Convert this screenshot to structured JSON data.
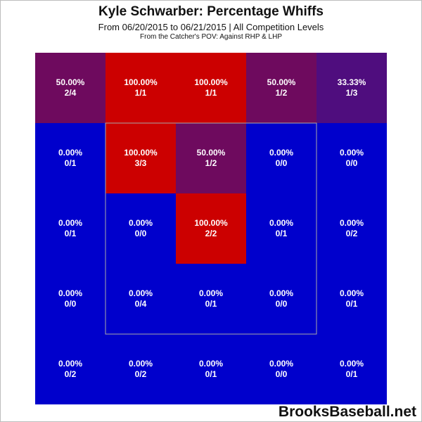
{
  "header": {
    "title": "Kyle Schwarber: Percentage Whiffs",
    "subtitle": "From 06/20/2015 to 06/21/2015 | All Competition Levels",
    "subtitle2": "From the Catcher's POV:  Against RHP & LHP"
  },
  "watermark": "BrooksBaseball.net",
  "colors": {
    "red": "#cc0000",
    "purple_dark": "#4f0d7e",
    "purple_mid": "#6e0a5e",
    "blue": "#0000cc",
    "strike_zone_outline": "#a8a8a8"
  },
  "chart_data": {
    "type": "heatmap",
    "title": "Kyle Schwarber: Percentage Whiffs",
    "metric": "Percentage Whiffs",
    "grid": {
      "rows": 5,
      "cols": 5
    },
    "strike_zone": {
      "rows": [
        1,
        3
      ],
      "cols": [
        1,
        3
      ]
    },
    "cells": [
      [
        {
          "pct": "50.00%",
          "count": "2/4",
          "value": 50.0
        },
        {
          "pct": "100.00%",
          "count": "1/1",
          "value": 100.0
        },
        {
          "pct": "100.00%",
          "count": "1/1",
          "value": 100.0
        },
        {
          "pct": "50.00%",
          "count": "1/2",
          "value": 50.0
        },
        {
          "pct": "33.33%",
          "count": "1/3",
          "value": 33.33
        }
      ],
      [
        {
          "pct": "0.00%",
          "count": "0/1",
          "value": 0.0
        },
        {
          "pct": "100.00%",
          "count": "3/3",
          "value": 100.0
        },
        {
          "pct": "50.00%",
          "count": "1/2",
          "value": 50.0
        },
        {
          "pct": "0.00%",
          "count": "0/0",
          "value": 0.0
        },
        {
          "pct": "0.00%",
          "count": "0/0",
          "value": 0.0
        }
      ],
      [
        {
          "pct": "0.00%",
          "count": "0/1",
          "value": 0.0
        },
        {
          "pct": "0.00%",
          "count": "0/0",
          "value": 0.0
        },
        {
          "pct": "100.00%",
          "count": "2/2",
          "value": 100.0
        },
        {
          "pct": "0.00%",
          "count": "0/1",
          "value": 0.0
        },
        {
          "pct": "0.00%",
          "count": "0/2",
          "value": 0.0
        }
      ],
      [
        {
          "pct": "0.00%",
          "count": "0/0",
          "value": 0.0
        },
        {
          "pct": "0.00%",
          "count": "0/4",
          "value": 0.0
        },
        {
          "pct": "0.00%",
          "count": "0/1",
          "value": 0.0
        },
        {
          "pct": "0.00%",
          "count": "0/0",
          "value": 0.0
        },
        {
          "pct": "0.00%",
          "count": "0/1",
          "value": 0.0
        }
      ],
      [
        {
          "pct": "0.00%",
          "count": "0/2",
          "value": 0.0
        },
        {
          "pct": "0.00%",
          "count": "0/2",
          "value": 0.0
        },
        {
          "pct": "0.00%",
          "count": "0/1",
          "value": 0.0
        },
        {
          "pct": "0.00%",
          "count": "0/0",
          "value": 0.0
        },
        {
          "pct": "0.00%",
          "count": "0/1",
          "value": 0.0
        }
      ]
    ]
  }
}
